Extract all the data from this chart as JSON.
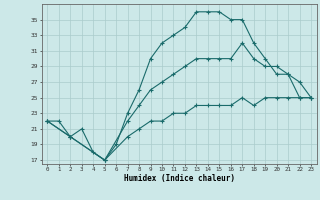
{
  "xlabel": "Humidex (Indice chaleur)",
  "background_color": "#cce8e8",
  "grid_color": "#aacccc",
  "line_color": "#1a6b6b",
  "xlim": [
    -0.5,
    23.5
  ],
  "ylim": [
    16.5,
    37.0
  ],
  "yticks": [
    17,
    19,
    21,
    23,
    25,
    27,
    29,
    31,
    33,
    35
  ],
  "xticks": [
    0,
    1,
    2,
    3,
    4,
    5,
    6,
    7,
    8,
    9,
    10,
    11,
    12,
    13,
    14,
    15,
    16,
    17,
    18,
    19,
    20,
    21,
    22,
    23
  ],
  "line1_x": [
    0,
    1,
    2,
    3,
    4,
    5,
    6,
    7,
    8,
    9,
    10,
    11,
    12,
    13,
    14,
    15,
    16,
    17,
    18,
    19,
    20,
    21,
    22,
    23
  ],
  "line1_y": [
    22,
    22,
    20,
    21,
    18,
    17,
    19,
    23,
    26,
    30,
    32,
    33,
    34,
    36,
    36,
    36,
    35,
    35,
    32,
    30,
    28,
    28,
    25,
    25
  ],
  "line2_x": [
    0,
    2,
    5,
    7,
    8,
    9,
    10,
    11,
    12,
    13,
    14,
    15,
    16,
    17,
    18,
    19,
    20,
    21,
    22,
    23
  ],
  "line2_y": [
    22,
    20,
    17,
    22,
    24,
    26,
    27,
    28,
    29,
    30,
    30,
    30,
    30,
    32,
    30,
    29,
    29,
    28,
    27,
    25
  ],
  "line3_x": [
    0,
    2,
    5,
    7,
    8,
    9,
    10,
    11,
    12,
    13,
    14,
    15,
    16,
    17,
    18,
    19,
    20,
    21,
    22,
    23
  ],
  "line3_y": [
    22,
    20,
    17,
    20,
    21,
    22,
    22,
    23,
    23,
    24,
    24,
    24,
    24,
    25,
    24,
    25,
    25,
    25,
    25,
    25
  ]
}
